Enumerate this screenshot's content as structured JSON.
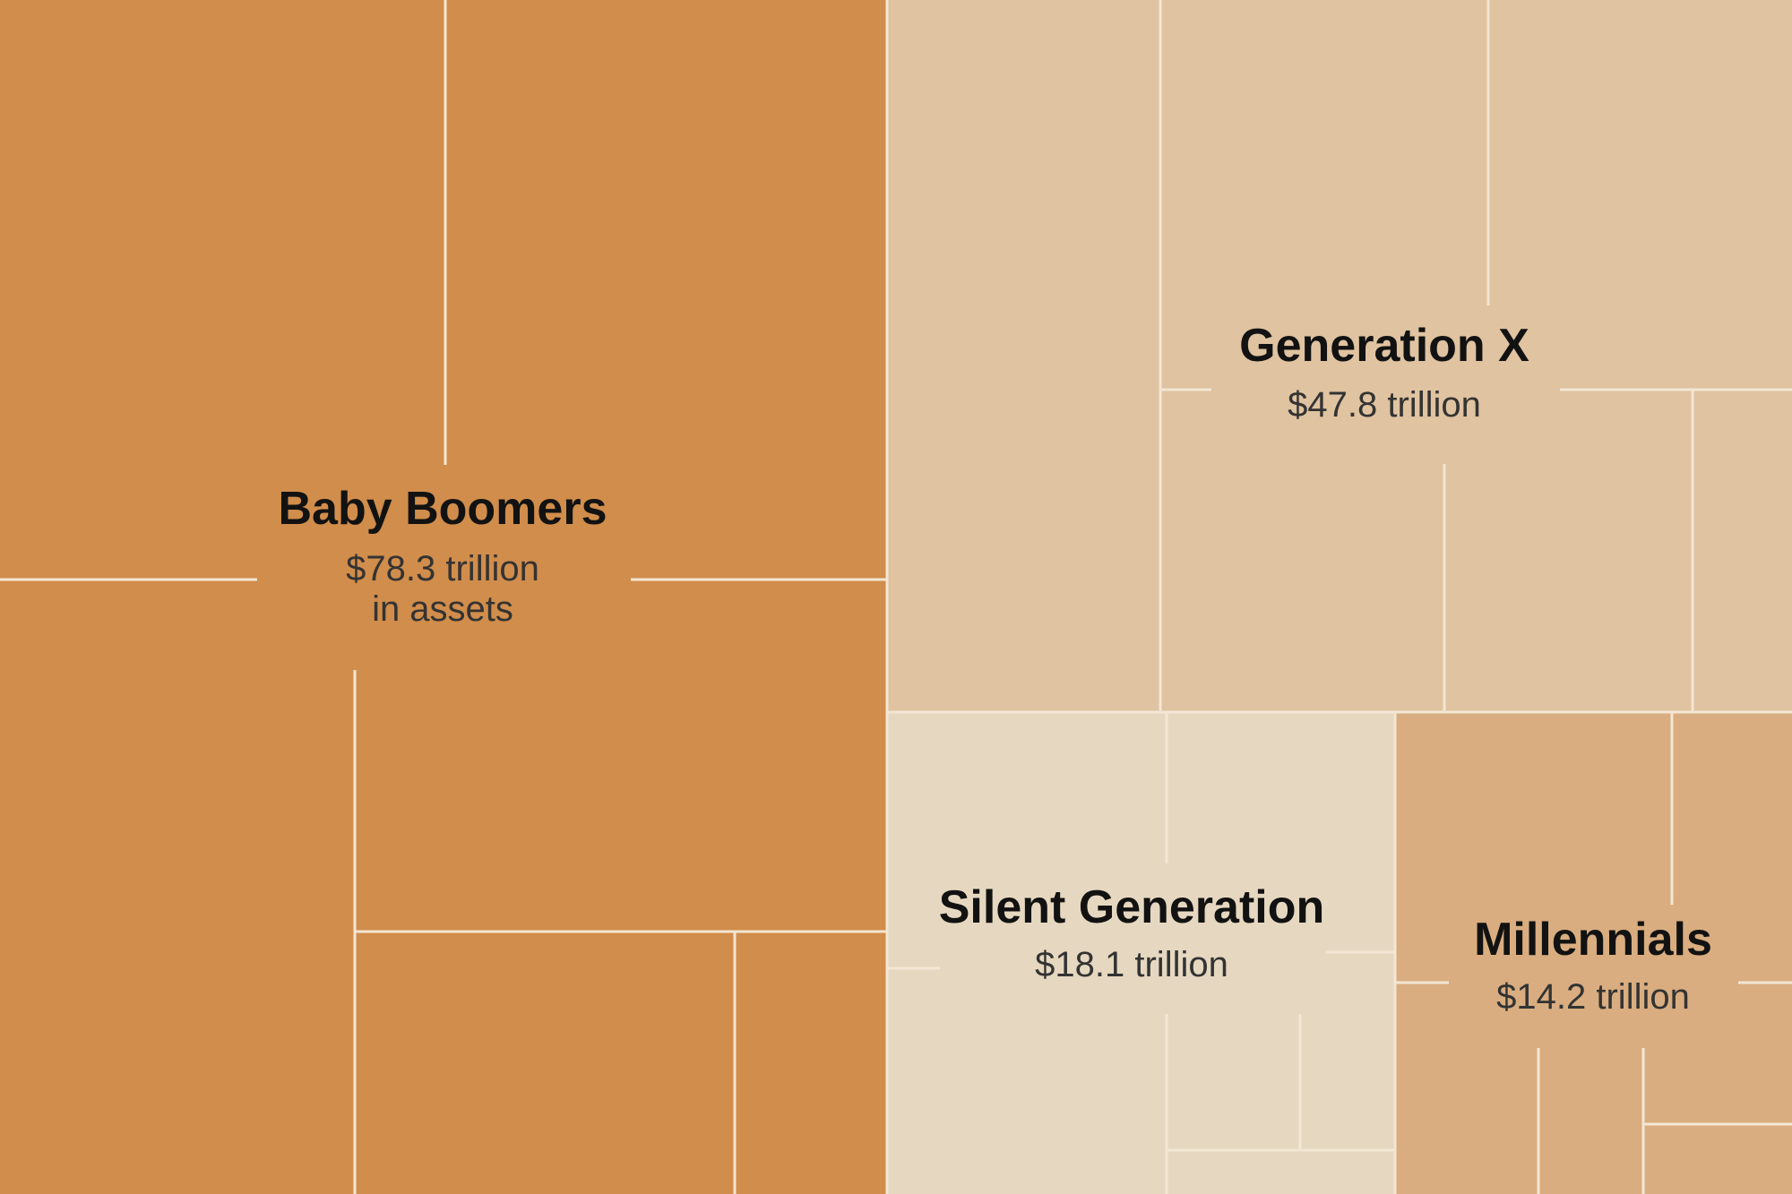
{
  "chart_data": {
    "type": "treemap",
    "title": "",
    "unit": "trillion",
    "colors": {
      "Baby Boomers": "#d18d4b",
      "Generation X": "#e0c3a0",
      "Silent Generation": "#e6d8c0",
      "Millennials": "#d9ad80",
      "divider": "#f3e6d4"
    },
    "groups": [
      {
        "name": "Baby Boomers",
        "value": 78.3,
        "value_label": "$78.3 trillion",
        "sub_label": "in assets"
      },
      {
        "name": "Generation X",
        "value": 47.8,
        "value_label": "$47.8 trillion",
        "sub_label": ""
      },
      {
        "name": "Silent Generation",
        "value": 18.1,
        "value_label": "$18.1 trillion",
        "sub_label": ""
      },
      {
        "name": "Millennials",
        "value": 14.2,
        "value_label": "$14.2 trillion",
        "sub_label": ""
      }
    ]
  }
}
